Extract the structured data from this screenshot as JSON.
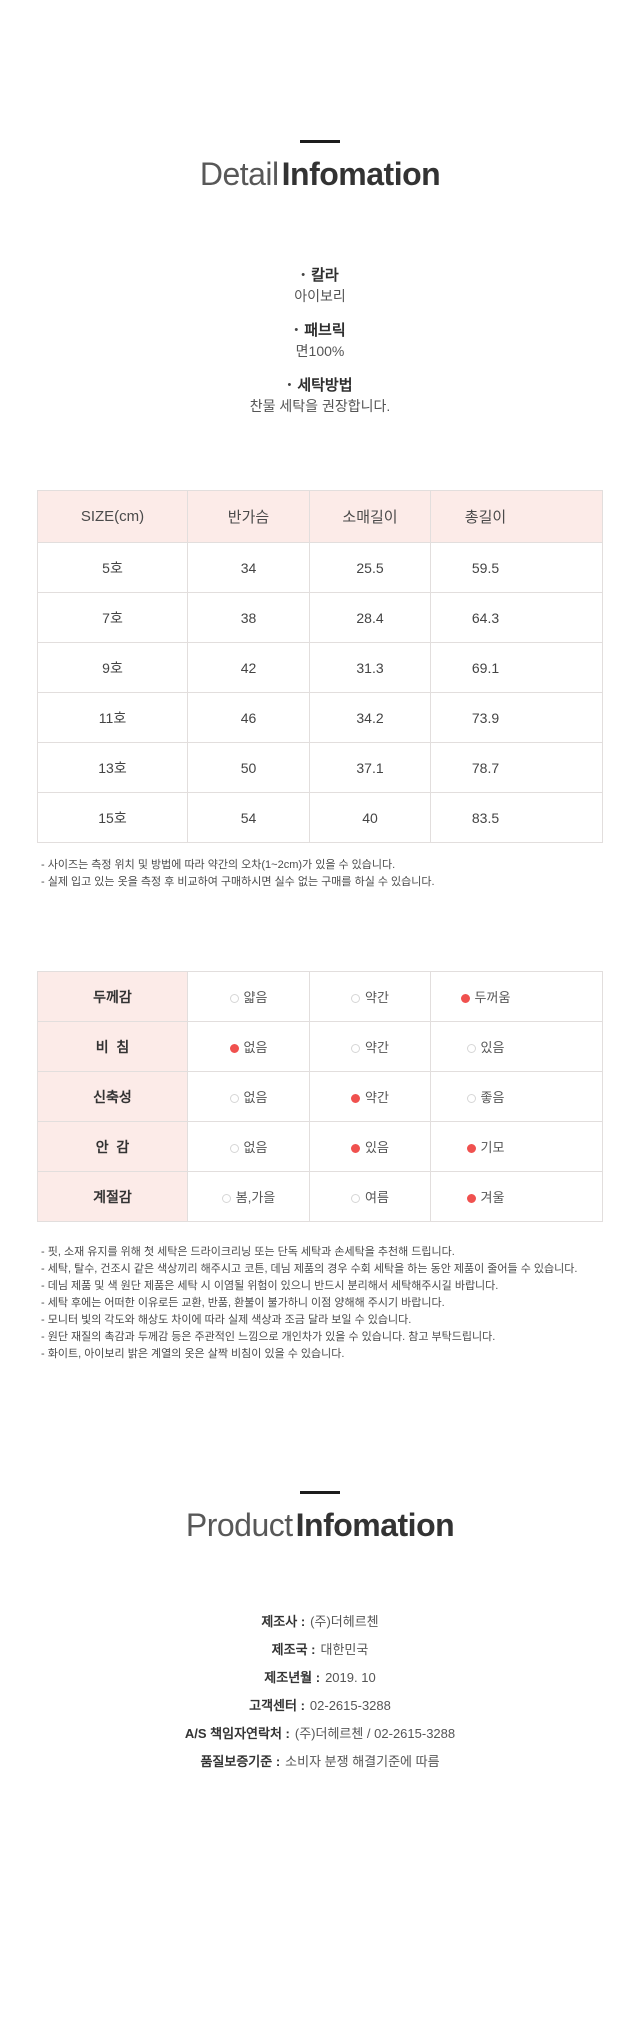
{
  "colors": {
    "accent_red": "#f0514f",
    "table_pink": "#fcebe8"
  },
  "detail_section": {
    "bullet": "•",
    "title_light": "Detail",
    "title_bold": "Infomation",
    "specs": [
      {
        "label": "칼라",
        "value": "아이보리"
      },
      {
        "label": "패브릭",
        "value": "면100%"
      },
      {
        "label": "세탁방법",
        "value": "찬물 세탁을 권장합니다."
      }
    ]
  },
  "size_table": {
    "headers": [
      "SIZE(cm)",
      "반가슴",
      "소매길이",
      "총길이"
    ],
    "rows": [
      [
        "5호",
        "34",
        "25.5",
        "59.5"
      ],
      [
        "7호",
        "38",
        "28.4",
        "64.3"
      ],
      [
        "9호",
        "42",
        "31.3",
        "69.1"
      ],
      [
        "11호",
        "46",
        "34.2",
        "73.9"
      ],
      [
        "13호",
        "50",
        "37.1",
        "78.7"
      ],
      [
        "15호",
        "54",
        "40",
        "83.5"
      ]
    ]
  },
  "size_notes": [
    "- 사이즈는 측정 위치 및 방법에 따라 약간의 오차(1~2cm)가 있을 수 있습니다.",
    "- 실제 입고 있는 옷을 측정 후 비교하여 구매하시면 실수 없는 구매를 하실 수 있습니다."
  ],
  "attribute_table": {
    "rows": [
      {
        "label": "두께감",
        "options": [
          {
            "text": "얇음",
            "selected": false
          },
          {
            "text": "약간",
            "selected": false
          },
          {
            "text": "두꺼움",
            "selected": true
          }
        ]
      },
      {
        "label": "비  침",
        "options": [
          {
            "text": "없음",
            "selected": true
          },
          {
            "text": "약간",
            "selected": false
          },
          {
            "text": "있음",
            "selected": false
          }
        ]
      },
      {
        "label": "신축성",
        "options": [
          {
            "text": "없음",
            "selected": false
          },
          {
            "text": "약간",
            "selected": true
          },
          {
            "text": "좋음",
            "selected": false
          }
        ]
      },
      {
        "label": "안  감",
        "options": [
          {
            "text": "없음",
            "selected": false
          },
          {
            "text": "있음",
            "selected": true
          },
          {
            "text": "기모",
            "selected": true
          }
        ]
      },
      {
        "label": "계절감",
        "options": [
          {
            "text": "봄,가을",
            "selected": false
          },
          {
            "text": "여름",
            "selected": false
          },
          {
            "text": "겨울",
            "selected": true
          }
        ]
      }
    ]
  },
  "care_notes": [
    "- 핏, 소재 유지를 위해 첫 세탁은 드라이크리닝 또는 단독 세탁과 손세탁을 추천해 드립니다.",
    "- 세탁, 탈수, 건조시 같은 색상끼리 해주시고 코튼, 데님 제품의 경우 수회 세탁을 하는 동안 제품이 줄어들 수 있습니다.",
    "- 데님 제품 및 색 원단 제품은 세탁 시 이염될 위험이 있으니 반드시 분리해서 세탁해주시길 바랍니다.",
    "- 세탁 후에는 어떠한 이유로든 교환, 반품, 환불이 불가하니 이점 양해해 주시기 바랍니다.",
    "- 모니터 빛의 각도와 해상도 차이에 따라 실제 색상과 조금 달라 보일 수 있습니다.",
    "- 원단 재질의 촉감과 두께감 등은 주관적인 느낌으로 개인차가 있을 수 있습니다. 참고 부탁드립니다.",
    "- 화이트, 아이보리 밝은 계열의 옷은 살짝 비침이 있을 수 있습니다."
  ],
  "product_section": {
    "title_light": "Product",
    "title_bold": "Infomation",
    "fields": [
      {
        "label": "제조사 :",
        "value": "(주)더헤르첸"
      },
      {
        "label": "제조국 :",
        "value": "대한민국"
      },
      {
        "label": "제조년월 :",
        "value": "2019. 10"
      },
      {
        "label": "고객센터 :",
        "value": "02-2615-3288"
      },
      {
        "label": "A/S 책임자연락처 :",
        "value": "(주)더헤르첸 / 02-2615-3288"
      },
      {
        "label": "품질보증기준 :",
        "value": "소비자 분쟁 해결기준에 따름"
      }
    ]
  }
}
